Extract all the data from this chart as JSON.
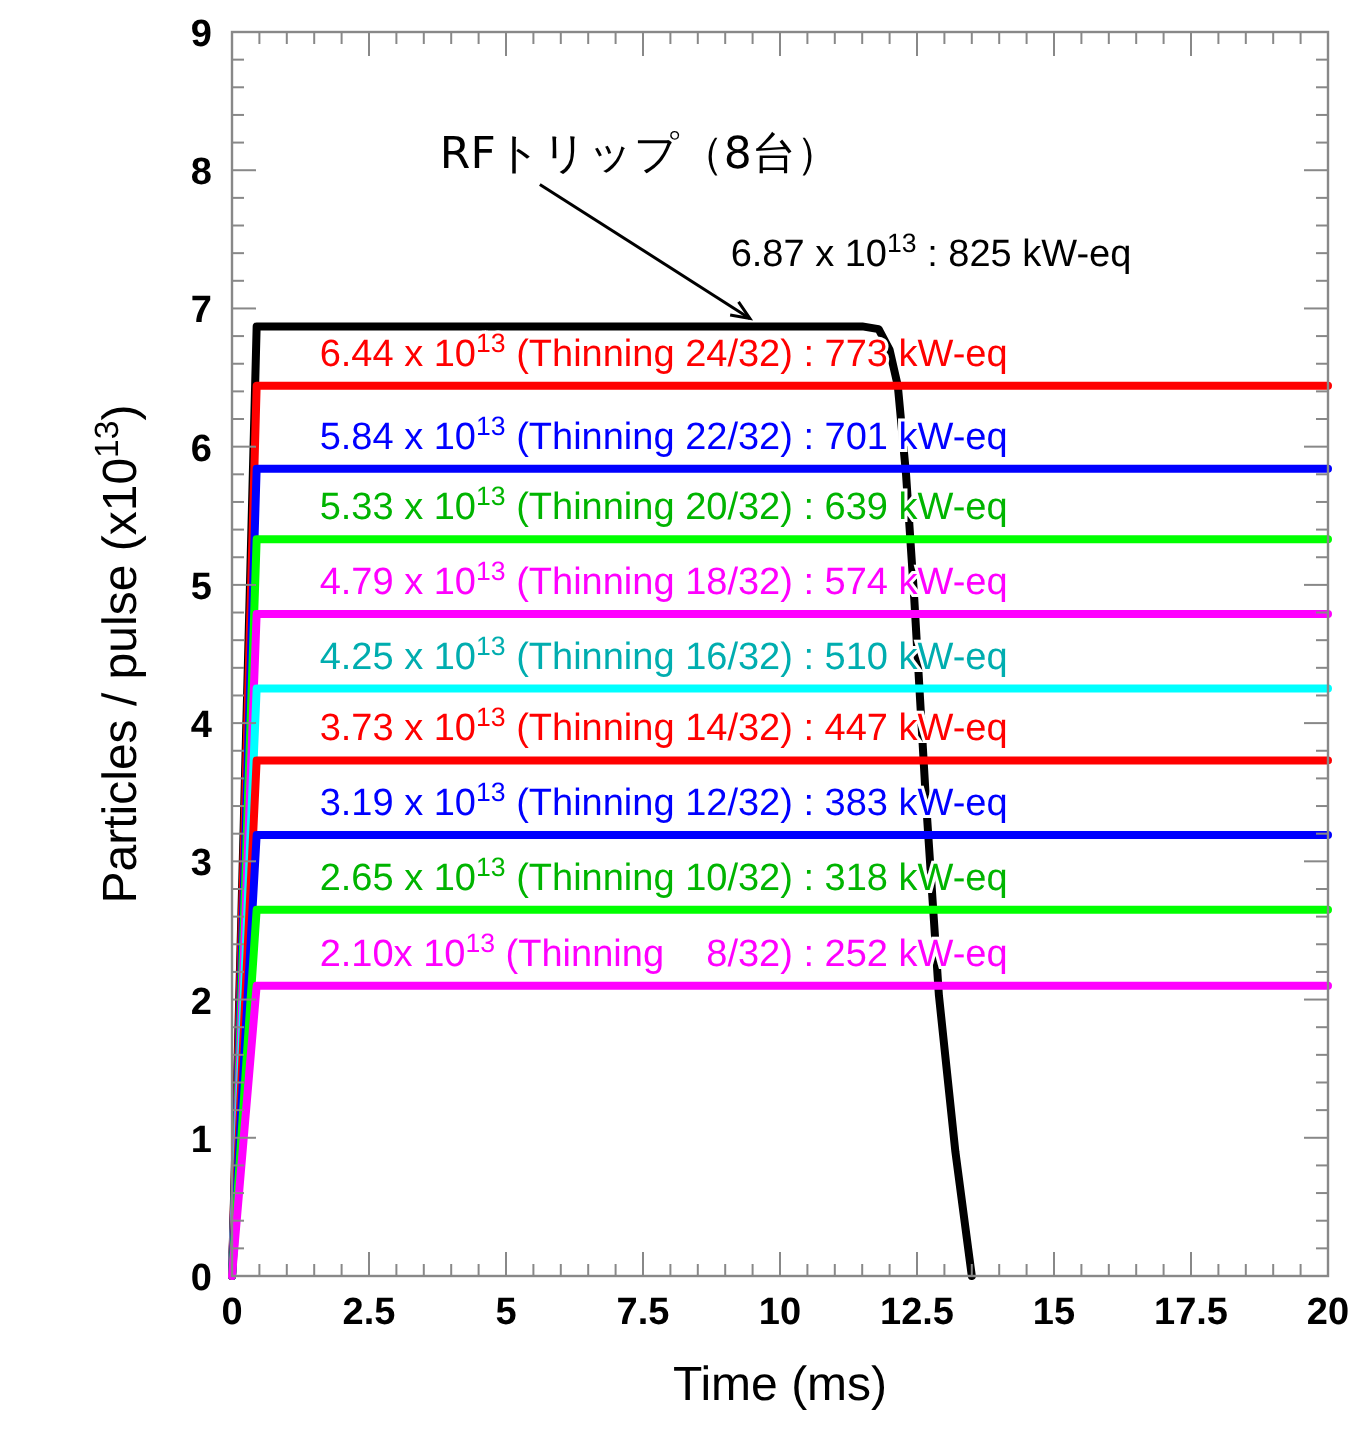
{
  "chart_data": {
    "type": "line",
    "xlabel": "Time (ms)",
    "ylabel": "Particles / pulse (x10$^{13}$)",
    "xlim": [
      0,
      20
    ],
    "xticks": [
      0,
      2.5,
      5,
      7.5,
      10,
      12.5,
      15,
      17.5,
      20
    ],
    "ylim": [
      0,
      9
    ],
    "yticks": [
      0,
      1,
      2,
      3,
      4,
      5,
      6,
      7,
      8,
      9
    ],
    "grid": false,
    "marker": "none",
    "line_style": "solid",
    "annotations": [
      {
        "text": "RFトリップ（8台）",
        "x": 9.45,
        "y": 6.87
      }
    ],
    "series": [
      {
        "name": "6.87 x 10$^{13}$ : 825 kW-eq",
        "color": "#000000",
        "x": [
          0,
          0.45,
          11.5,
          11.8,
          12.0,
          12.15,
          12.3,
          12.45,
          12.66,
          12.9,
          13.2,
          13.5
        ],
        "values": [
          0,
          6.87,
          6.87,
          6.85,
          6.7,
          6.44,
          5.8,
          4.9,
          3.46,
          2.03,
          0.9,
          0
        ]
      },
      {
        "name": "6.44 x 10$^{13}$ (Thinning 24/32) : 773 kW-eq",
        "color": "#ff0000",
        "x": [
          0,
          0.45,
          20
        ],
        "values": [
          0,
          6.44,
          6.44
        ]
      },
      {
        "name": "5.84 x 10$^{13}$ (Thinning 22/32) : 701 kW-eq",
        "color": "#0000ff",
        "x": [
          0,
          0.45,
          20
        ],
        "values": [
          0,
          5.84,
          5.84
        ]
      },
      {
        "name": "5.33 x 10$^{13}$ (Thinning 20/32) : 639 kW-eq",
        "color": "#00ff00",
        "x": [
          0,
          0.45,
          20
        ],
        "values": [
          0,
          5.33,
          5.33
        ]
      },
      {
        "name": "4.79 x 10$^{13}$ (Thinning 18/32) : 574 kW-eq",
        "color": "#ff00ff",
        "x": [
          0,
          0.45,
          20
        ],
        "values": [
          0,
          4.79,
          4.79
        ]
      },
      {
        "name": "4.25 x 10$^{13}$ (Thinning 16/32) : 510 kW-eq",
        "color": "#00ffff",
        "x": [
          0,
          0.45,
          20
        ],
        "values": [
          0,
          4.25,
          4.25
        ]
      },
      {
        "name": "3.73 x 10$^{13}$ (Thinning 14/32) : 447 kW-eq",
        "color": "#ff0000",
        "x": [
          0,
          0.45,
          20
        ],
        "values": [
          0,
          3.73,
          3.73
        ]
      },
      {
        "name": "3.19 x 10$^{13}$ (Thinning 12/32) : 383 kW-eq",
        "color": "#0000ff",
        "x": [
          0,
          0.45,
          20
        ],
        "values": [
          0,
          3.19,
          3.19
        ]
      },
      {
        "name": "2.65 x 10$^{13}$ (Thinning 10/32) : 318 kW-eq",
        "color": "#00ff00",
        "x": [
          0,
          0.45,
          20
        ],
        "values": [
          0,
          2.65,
          2.65
        ]
      },
      {
        "name": "2.10x 10$^{13}$ (Thinning    8/32) : 252 kW-eq",
        "color": "#ff00ff",
        "x": [
          0,
          0.45,
          20
        ],
        "values": [
          0,
          2.1,
          2.1
        ]
      }
    ]
  }
}
